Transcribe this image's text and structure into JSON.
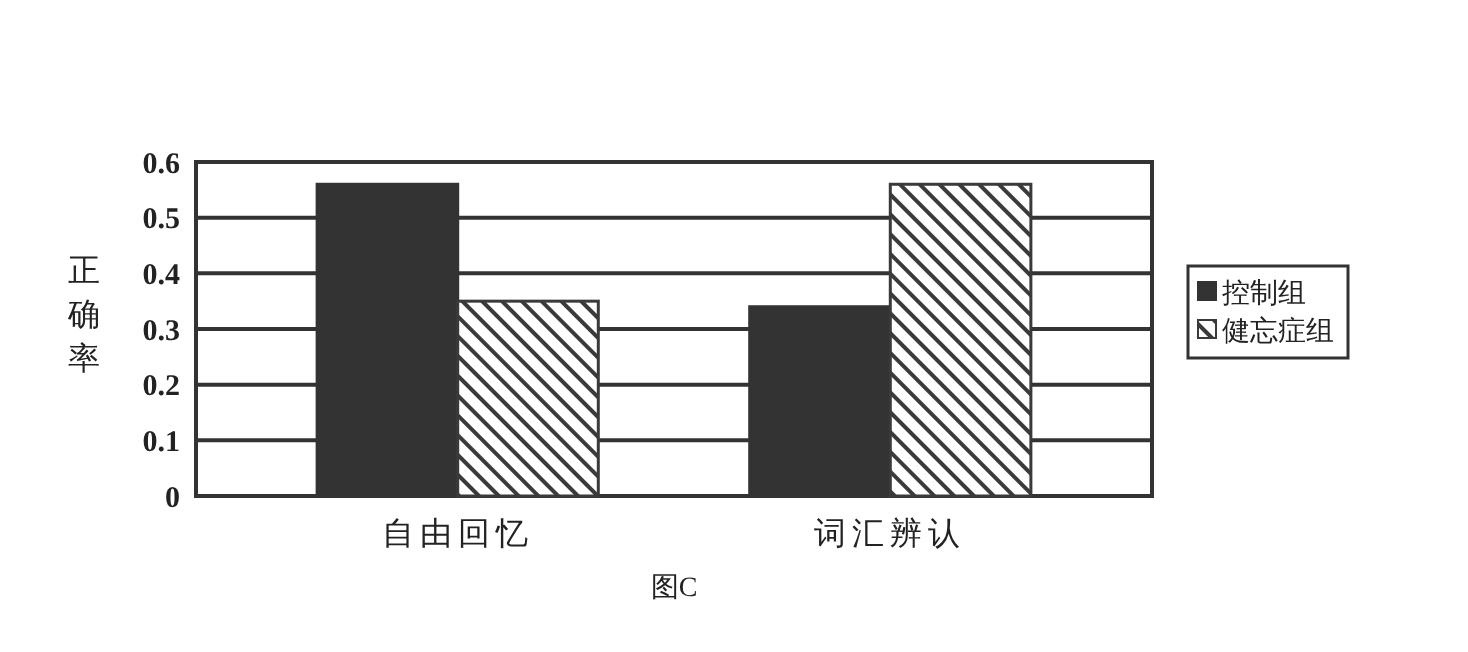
{
  "chart_data": {
    "type": "bar",
    "ylabel": "正确率",
    "categories": [
      "自由回忆",
      "词汇辨认"
    ],
    "series": [
      {
        "name": "控制组",
        "color": "#333333",
        "values": [
          0.56,
          0.34
        ]
      },
      {
        "name": "健忘症组",
        "color": "#3a3a3a",
        "values": [
          0.35,
          0.56
        ]
      }
    ],
    "ylim": [
      0,
      0.6
    ],
    "yticks": [
      0,
      0.1,
      0.2,
      0.3,
      0.4,
      0.5,
      0.6
    ],
    "grid": "y",
    "legend": "right",
    "annotations": [
      "图C"
    ]
  }
}
